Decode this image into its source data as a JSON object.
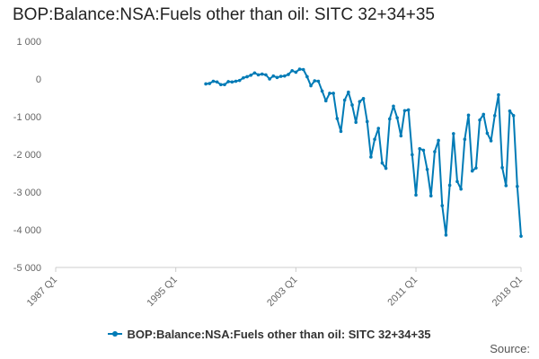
{
  "chart_data": {
    "type": "line",
    "title": "BOP:Balance:NSA:Fuels other than oil: SITC 32+34+35",
    "xlabel": "",
    "ylabel": "",
    "ylim": [
      -5000,
      1000
    ],
    "y_ticks": [
      1000,
      0,
      -1000,
      -2000,
      -3000,
      -4000,
      -5000
    ],
    "y_tick_labels": [
      "1 000",
      "0",
      "-1 000",
      "-2 000",
      "-3 000",
      "-4 000",
      "-5 000"
    ],
    "x_range": [
      "1987 Q1",
      "2018 Q1"
    ],
    "x_ticks": [
      "1987 Q1",
      "1995 Q1",
      "2003 Q1",
      "2011 Q1",
      "2018 Q1"
    ],
    "grid": false,
    "legend_position": "bottom",
    "series": [
      {
        "name": "BOP:Balance:NSA:Fuels other than oil: SITC 32+34+35",
        "color": "#007bb6",
        "start": "1997 Q1",
        "frequency": "quarterly",
        "values": [
          -130,
          -120,
          -60,
          -80,
          -150,
          -150,
          -70,
          -80,
          -60,
          -40,
          30,
          60,
          100,
          160,
          110,
          130,
          110,
          0,
          80,
          40,
          70,
          80,
          120,
          220,
          180,
          260,
          250,
          60,
          -180,
          -50,
          -60,
          -320,
          -580,
          -380,
          -380,
          -1050,
          -1390,
          -560,
          -350,
          -690,
          -1150,
          -600,
          -520,
          -1130,
          -2070,
          -1600,
          -1310,
          -2230,
          -2370,
          -1060,
          -720,
          -1030,
          -1510,
          -840,
          -820,
          -2010,
          -3080,
          -1850,
          -1890,
          -2400,
          -3100,
          -1930,
          -1630,
          -3360,
          -4140,
          -2820,
          -1450,
          -2720,
          -2920,
          -1600,
          -960,
          -2440,
          -2360,
          -1090,
          -940,
          -1440,
          -1640,
          -970,
          -420,
          -2350,
          -2830,
          -850,
          -970,
          -2850,
          -4170
        ]
      }
    ]
  },
  "legend": {
    "label": "BOP:Balance:NSA:Fuels other than oil: SITC 32+34+35"
  },
  "source_label": "Source:"
}
